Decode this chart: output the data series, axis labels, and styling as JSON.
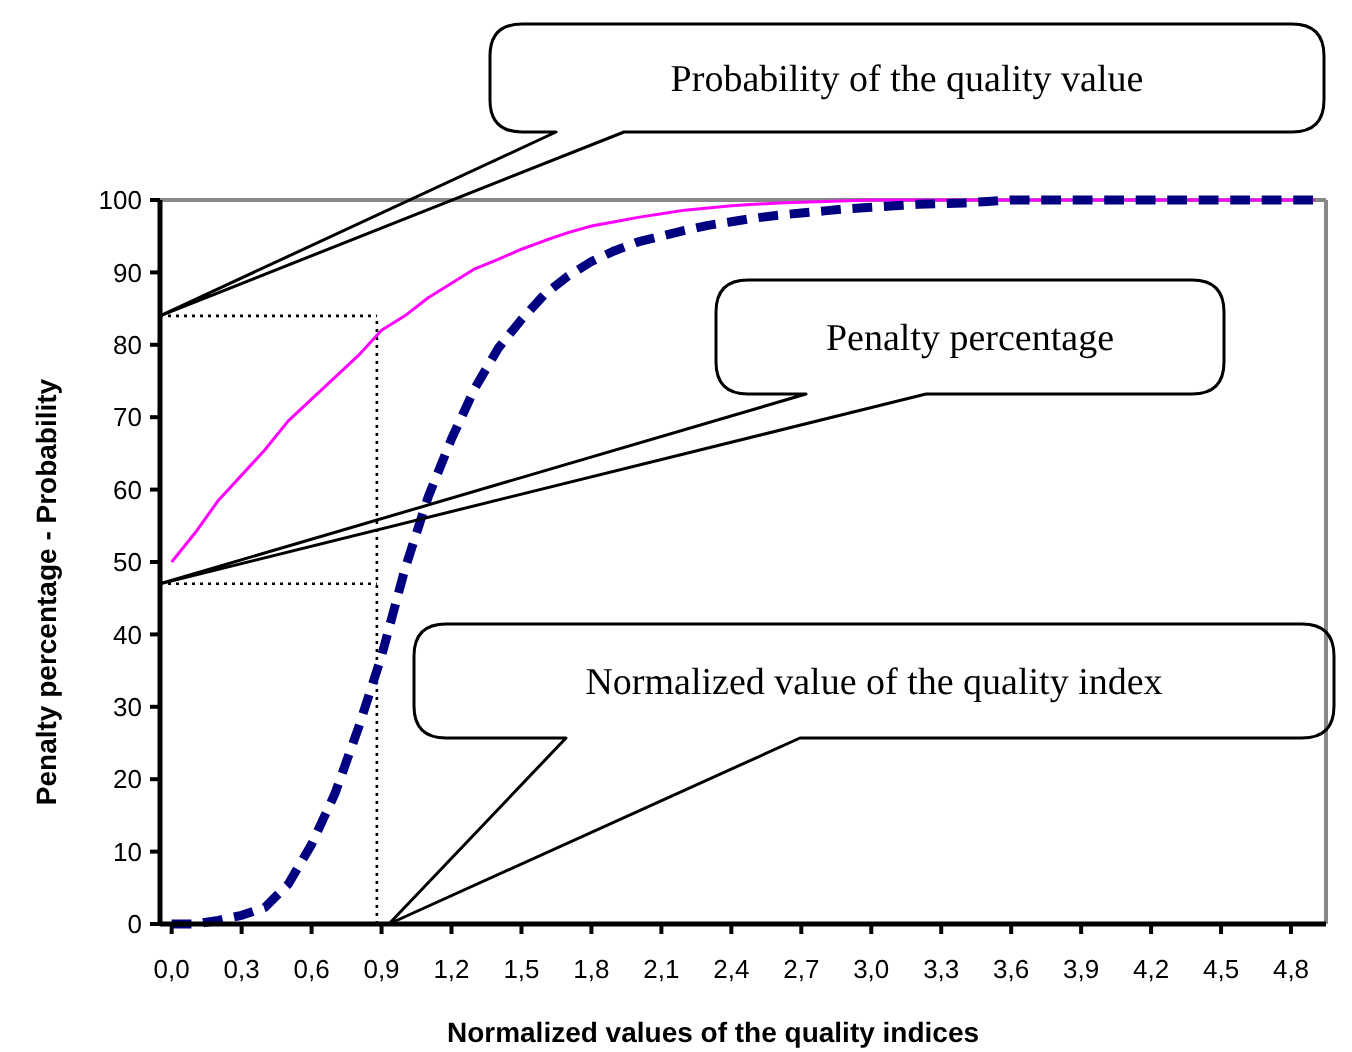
{
  "chart_data": {
    "type": "line",
    "xlabel": "Normalized values of the quality indices",
    "ylabel": "Penalty percentage - Probability",
    "x": [
      0,
      0.1,
      0.2,
      0.3,
      0.4,
      0.5,
      0.6,
      0.7,
      0.8,
      0.9,
      1,
      1.1,
      1.2,
      1.3,
      1.4,
      1.5,
      1.6,
      1.7,
      1.8,
      1.9,
      2,
      2.1,
      2.2,
      2.3,
      2.4,
      2.5,
      2.6,
      2.7,
      2.8,
      2.9,
      3,
      3.1,
      3.2,
      3.3,
      3.4,
      3.5,
      3.6,
      3.7,
      3.8,
      3.9,
      4,
      4.1,
      4.2,
      4.3,
      4.4,
      4.5,
      4.6,
      4.7,
      4.8,
      4.9
    ],
    "series": [
      {
        "color": "#ff00ff",
        "line_style": "solid",
        "values": [
          50,
          54,
          58.5,
          62,
          65.5,
          69.5,
          72.5,
          75.5,
          78.5,
          82,
          84,
          86.5,
          88.5,
          90.5,
          91.8,
          93.2,
          94.4,
          95.5,
          96.4,
          97,
          97.6,
          98.1,
          98.6,
          98.9,
          99.2,
          99.4,
          99.6,
          99.7,
          99.8,
          99.9,
          100,
          100,
          100,
          100,
          100,
          100,
          100,
          100,
          100,
          100,
          100,
          100,
          100,
          100,
          100,
          100,
          100,
          100,
          100,
          100
        ]
      },
      {
        "color": "#000080",
        "line_style": "dashed",
        "values": [
          0,
          0,
          0.5,
          1.2,
          2.3,
          5.5,
          11,
          18,
          27,
          37,
          49,
          59,
          67,
          74,
          79.5,
          83.5,
          87,
          89.5,
          91.5,
          93,
          94.2,
          95,
          95.8,
          96.5,
          97,
          97.5,
          97.9,
          98.2,
          98.5,
          98.8,
          99,
          99.2,
          99.4,
          99.5,
          99.6,
          99.8,
          100,
          100,
          100,
          100,
          100,
          100,
          100,
          100,
          100,
          100,
          100,
          100,
          100,
          100
        ]
      }
    ],
    "xlim": [
      -0.05,
      4.95
    ],
    "xticks": [
      {
        "value": 0,
        "label": "0,0"
      },
      {
        "value": 0.3,
        "label": "0,3"
      },
      {
        "value": 0.6,
        "label": "0,6"
      },
      {
        "value": 0.9,
        "label": "0,9"
      },
      {
        "value": 1.2,
        "label": "1,2"
      },
      {
        "value": 1.5,
        "label": "1,5"
      },
      {
        "value": 1.8,
        "label": "1,8"
      },
      {
        "value": 2.1,
        "label": "2,1"
      },
      {
        "value": 2.4,
        "label": "2,4"
      },
      {
        "value": 2.7,
        "label": "2,7"
      },
      {
        "value": 3,
        "label": "3,0"
      },
      {
        "value": 3.3,
        "label": "3,3"
      },
      {
        "value": 3.6,
        "label": "3,6"
      },
      {
        "value": 3.9,
        "label": "3,9"
      },
      {
        "value": 4.2,
        "label": "4,2"
      },
      {
        "value": 4.5,
        "label": "4,5"
      },
      {
        "value": 4.8,
        "label": "4,8"
      }
    ],
    "ylim": [
      0,
      100
    ],
    "yticks": [
      0,
      10,
      20,
      30,
      40,
      50,
      60,
      70,
      80,
      90,
      100
    ],
    "grid": false,
    "marker": "none",
    "ref_lines": [
      {
        "axis": "x",
        "value": 0.88,
        "line_style": "dotted"
      },
      {
        "axis": "y",
        "value": 84,
        "line_style": "dotted"
      },
      {
        "axis": "y",
        "value": 47,
        "line_style": "dotted"
      }
    ],
    "annotations": [
      "Probability of the quality value",
      "Penalty percentage",
      "Normalized value of the quality index"
    ]
  }
}
